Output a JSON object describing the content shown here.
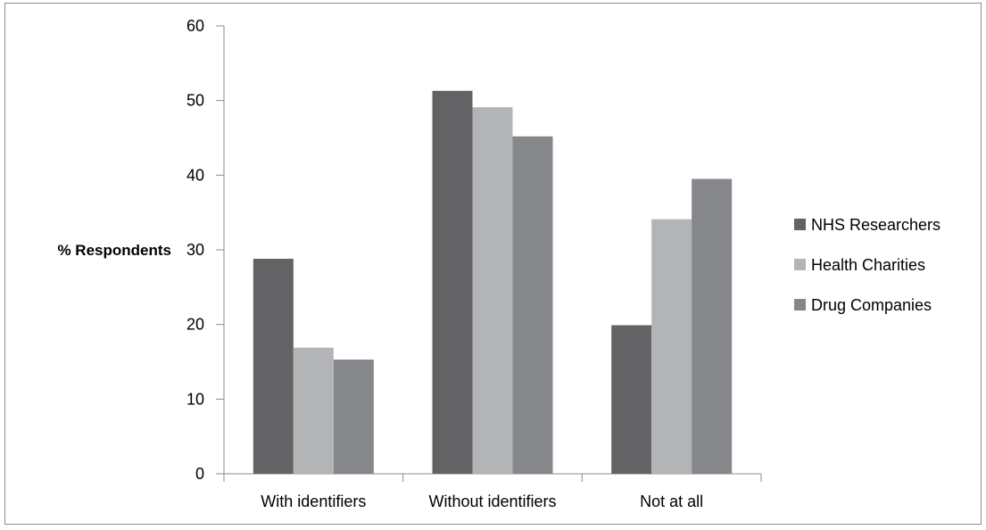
{
  "chart_data": {
    "type": "bar",
    "title": "",
    "xlabel": "",
    "ylabel": "% Respondents",
    "ylim": [
      0,
      60
    ],
    "yticks": [
      0,
      10,
      20,
      30,
      40,
      50,
      60
    ],
    "grid": false,
    "legend_position": "right",
    "categories": [
      "With identifiers",
      "Without identifiers",
      "Not at all"
    ],
    "series": [
      {
        "name": "NHS Researchers",
        "values": [
          28.8,
          51.3,
          19.9
        ],
        "color": "#636365"
      },
      {
        "name": "Health Charities",
        "values": [
          16.9,
          49.1,
          34.1
        ],
        "color": "#b3b4b6"
      },
      {
        "name": "Drug Companies",
        "values": [
          15.3,
          45.2,
          39.5
        ],
        "color": "#86878a"
      }
    ]
  }
}
